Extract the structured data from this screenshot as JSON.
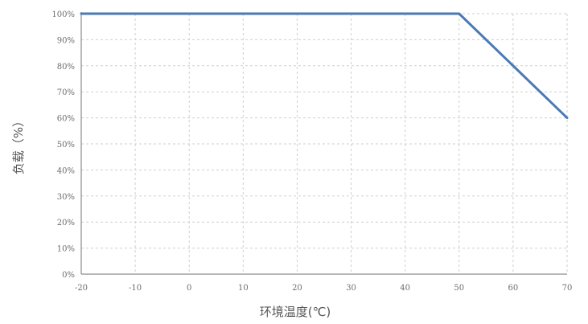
{
  "chart_data": {
    "type": "line",
    "title": "",
    "xlabel": "环境温度(℃)",
    "ylabel": "负载（%）",
    "xlim": [
      -20,
      70
    ],
    "ylim": [
      0,
      100
    ],
    "x_ticks": [
      -20,
      -10,
      0,
      10,
      20,
      30,
      40,
      50,
      60,
      70
    ],
    "x_tick_labels": [
      "-20",
      "-10",
      "0",
      "10",
      "20",
      "30",
      "40",
      "50",
      "60",
      "70"
    ],
    "y_ticks": [
      0,
      10,
      20,
      30,
      40,
      50,
      60,
      70,
      80,
      90,
      100
    ],
    "y_tick_labels": [
      "0%",
      "10%",
      "20%",
      "30%",
      "40%",
      "50%",
      "60%",
      "70%",
      "80%",
      "90%",
      "100%"
    ],
    "grid": true,
    "legend": "none",
    "series": [
      {
        "color": "#4a7ab5",
        "x": [
          -20,
          50,
          70
        ],
        "y": [
          100,
          100,
          60
        ]
      }
    ]
  }
}
